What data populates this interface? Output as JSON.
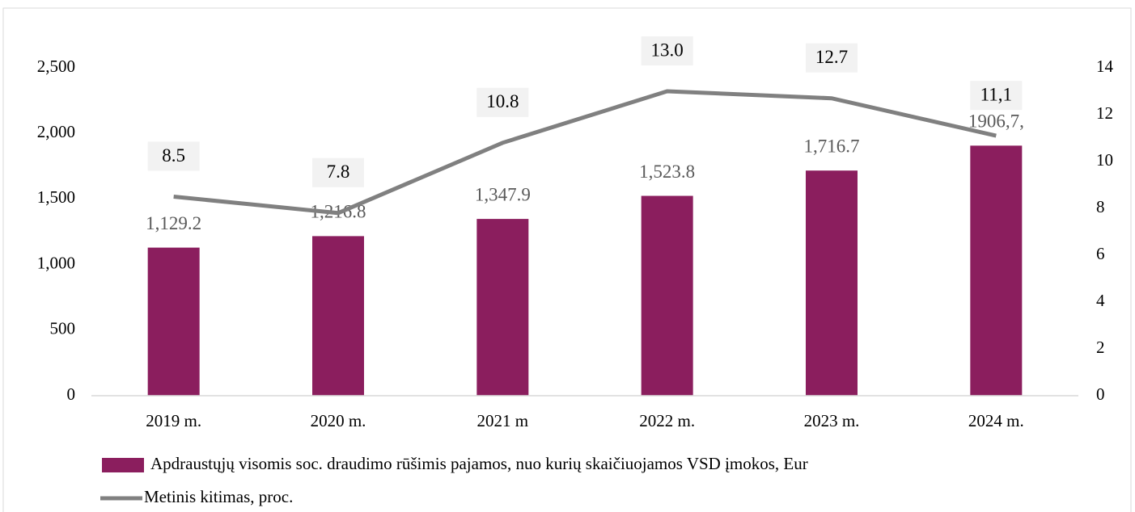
{
  "chart_data": {
    "type": "bar_line",
    "categories": [
      "2019 m.",
      "2020 m.",
      "2021 m",
      "2022 m.",
      "2023 m.",
      "2024 m."
    ],
    "series": [
      {
        "name": "Apdraustųjų  visomis soc. draudimo rūšimis pajamos, nuo kurių skaičiuojamos VSD įmokos, Eur",
        "type": "bar",
        "color": "#8b1e5e",
        "values": [
          1129.2,
          1216.8,
          1347.9,
          1523.8,
          1716.7,
          1906.7
        ],
        "value_labels": [
          "1,129.2",
          "1,216.8",
          "1,347.9",
          "1,523.8",
          "1,716.7",
          "1906,7,"
        ]
      },
      {
        "name": "Metinis kitimas, proc.",
        "type": "line",
        "axis": "y2",
        "color": "#808080",
        "values": [
          8.5,
          7.8,
          10.8,
          13.0,
          12.7,
          11.1
        ],
        "value_labels": [
          "8.5",
          "7.8",
          "10.8",
          "13.0",
          "12.7",
          "11,1"
        ]
      }
    ],
    "ylim": [
      0,
      2500
    ],
    "yticks": [
      0,
      500,
      {
        "value": 1000,
        "label": "1,000"
      },
      {
        "value": 1500,
        "label": "1,500"
      },
      {
        "value": 2000,
        "label": "2,000"
      },
      {
        "value": 2500,
        "label": "2,500"
      }
    ],
    "y2lim": [
      0,
      14
    ],
    "y2ticks": [
      0,
      2,
      4,
      6,
      8,
      10,
      12,
      14
    ]
  }
}
